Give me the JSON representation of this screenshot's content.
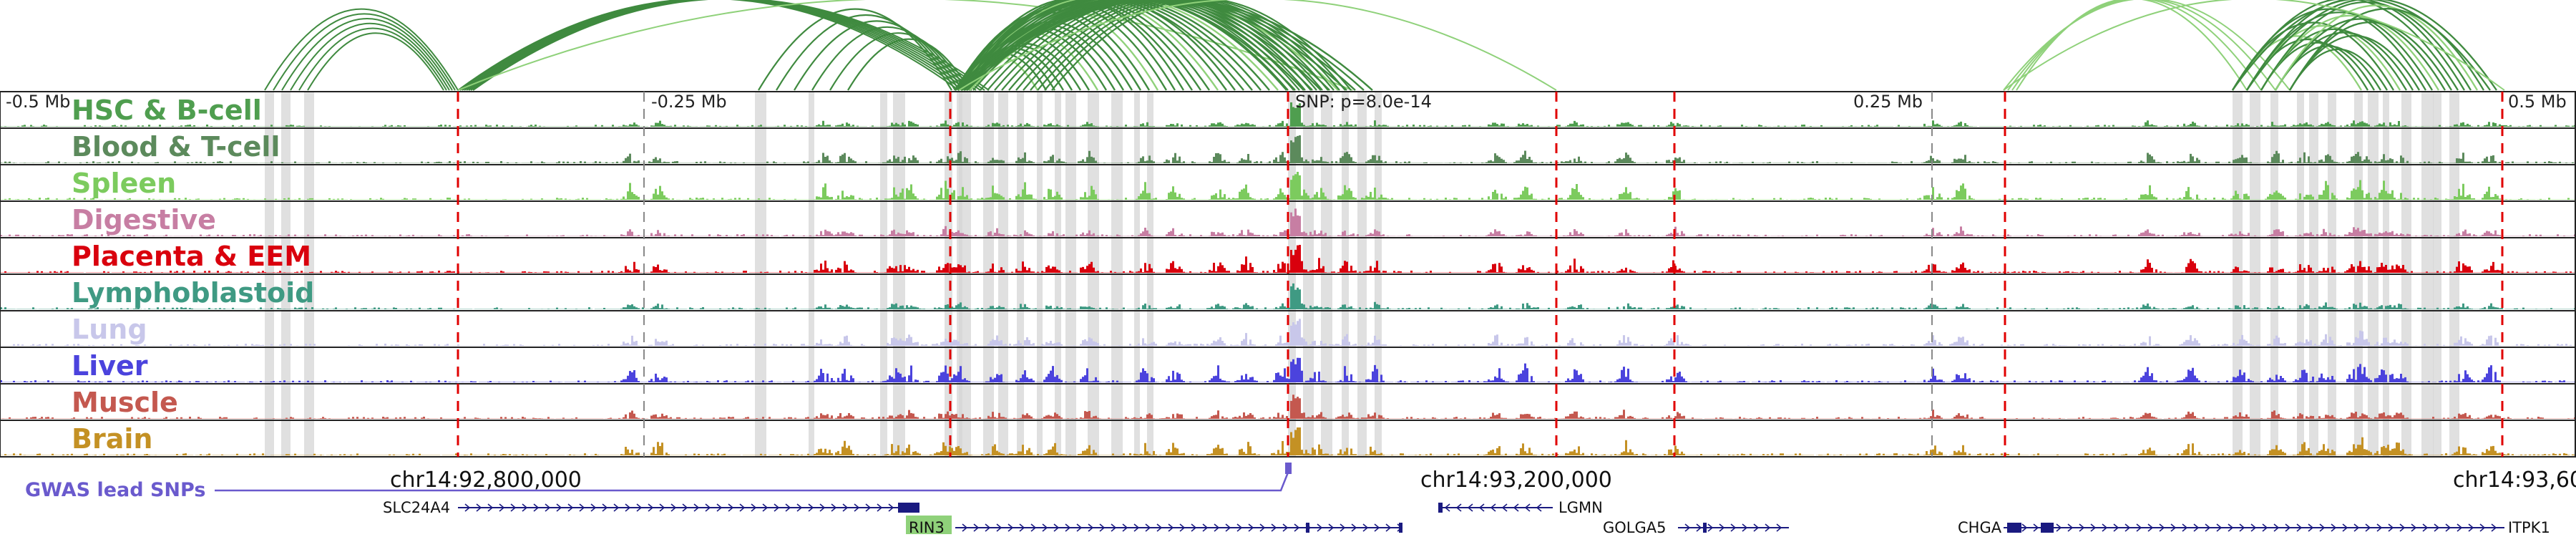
{
  "tracks": [
    {
      "label": "HSC & B-cell",
      "color": "#4f9e4f"
    },
    {
      "label": "Blood & T-cell",
      "color": "#5c8a5c"
    },
    {
      "label": "Spleen",
      "color": "#7ccb5e"
    },
    {
      "label": "Digestive",
      "color": "#c77ea3"
    },
    {
      "label": "Placenta & EEM",
      "color": "#d9000d"
    },
    {
      "label": "Lymphoblastoid",
      "color": "#3f9a83"
    },
    {
      "label": "Lung",
      "color": "#c8c7ea"
    },
    {
      "label": "Liver",
      "color": "#4b43dd"
    },
    {
      "label": "Muscle",
      "color": "#c4584f"
    },
    {
      "label": "Brain",
      "color": "#c49124"
    }
  ],
  "axis": {
    "offset_labels": [
      "-0.5 Mb",
      "-0.25 Mb",
      "0.25 Mb",
      "0.5 Mb"
    ],
    "snp_label": "SNP: p=8.0e-14",
    "chrom_labels": [
      "chr14:92,800,000",
      "chr14:93,200,000",
      "chr14:93,60"
    ]
  },
  "gwas": {
    "label": "GWAS lead SNPs",
    "color": "#6a5acd"
  },
  "genes": [
    {
      "name": "SLC24A4",
      "strand": "+",
      "highlight": false
    },
    {
      "name": "RIN3",
      "strand": "+",
      "highlight": true
    },
    {
      "name": "LGMN",
      "strand": "-",
      "highlight": false
    },
    {
      "name": "GOLGA5",
      "strand": "+",
      "highlight": false
    },
    {
      "name": "CHGA",
      "strand": "+",
      "highlight": false
    },
    {
      "name": "ITPK1",
      "strand": "-",
      "highlight": false
    }
  ],
  "colors": {
    "arc": "#3f8a3f",
    "arc_light": "#8fd17a",
    "red_dash": "#e00000",
    "highlight_band": "#d6d6d6",
    "gene": "#1a1a80",
    "gene_highlight": "#8fd17a",
    "track_border": "#222222"
  }
}
